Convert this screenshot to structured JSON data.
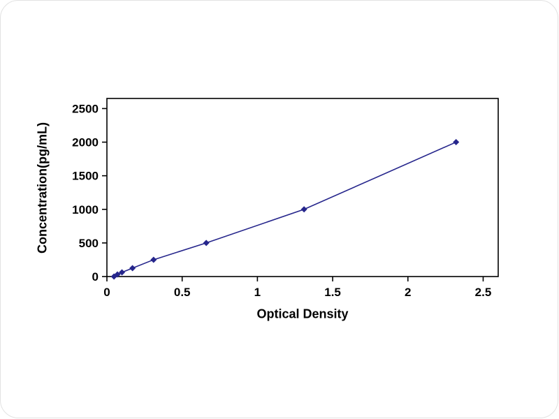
{
  "chart_data": {
    "type": "line",
    "title": "",
    "xlabel": "Optical Density",
    "ylabel": "Concentration(pg/mL)",
    "points": [
      {
        "x": 0.047,
        "y": 0
      },
      {
        "x": 0.07,
        "y": 31.25
      },
      {
        "x": 0.1,
        "y": 62.5
      },
      {
        "x": 0.17,
        "y": 125
      },
      {
        "x": 0.31,
        "y": 250
      },
      {
        "x": 0.66,
        "y": 500
      },
      {
        "x": 1.31,
        "y": 1000
      },
      {
        "x": 2.32,
        "y": 2000
      }
    ],
    "xlim": [
      0,
      2.6
    ],
    "ylim": [
      0,
      2650
    ],
    "x_ticks": [
      0,
      0.5,
      1,
      1.5,
      2,
      2.5
    ],
    "x_tick_labels": [
      "0",
      "0.5",
      "1",
      "1.5",
      "2",
      "2.5"
    ],
    "y_ticks": [
      0,
      500,
      1000,
      1500,
      2000,
      2500
    ],
    "y_tick_labels": [
      "0",
      "500",
      "1000",
      "1500",
      "2000",
      "2500"
    ],
    "grid": false,
    "legend": false,
    "marker": "diamond",
    "colors": {
      "series": "#26268C",
      "axis": "#000000",
      "background": "#FFFFFF"
    }
  }
}
